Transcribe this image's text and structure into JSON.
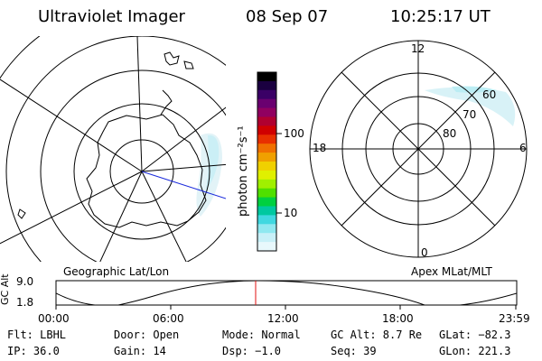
{
  "header": {
    "instrument": "Ultraviolet Imager",
    "date": "08 Sep 07",
    "time": "10:25:17 UT"
  },
  "left_panel": {
    "label": "Geographic Lat/Lon"
  },
  "right_panel": {
    "label": "Apex MLat/MLT",
    "mlt_labels": {
      "top": "12",
      "left": "18",
      "right": "6",
      "bottom": "0"
    },
    "lat_labels": [
      "60",
      "70",
      "80"
    ]
  },
  "colorbar": {
    "unit_label": "photon cm⁻²s⁻¹",
    "ticks": [
      "100",
      "10"
    ],
    "colors": [
      "#000000",
      "#1a0040",
      "#3a0066",
      "#6a0070",
      "#900060",
      "#b00030",
      "#d00000",
      "#e83000",
      "#f07000",
      "#f0a000",
      "#f0d000",
      "#e0f000",
      "#a0f000",
      "#50e000",
      "#00d040",
      "#00c8a0",
      "#40d8e0",
      "#90e8f0",
      "#c8f0f8",
      "#e8f8fc"
    ]
  },
  "orbit_plot": {
    "ylabel": "GC Alt",
    "yticks": [
      "9.0",
      "1.8"
    ],
    "xticks": [
      "00:00",
      "06:00",
      "12:00",
      "18:00",
      "23:59"
    ],
    "current_time_fraction": 0.4342
  },
  "footer": {
    "row1": {
      "flt": "Flt: LBHL",
      "door": "Door: Open",
      "mode": "Mode: Normal",
      "gcalt": "GC Alt: 8.7 Re",
      "glat": "GLat: −82.3"
    },
    "row2": {
      "ip": "IP: 36.0",
      "gain": "Gain: 14",
      "dsp": "Dsp:   −1.0",
      "seq": "Seq: 39",
      "glon": "GLon: 221.3"
    }
  }
}
